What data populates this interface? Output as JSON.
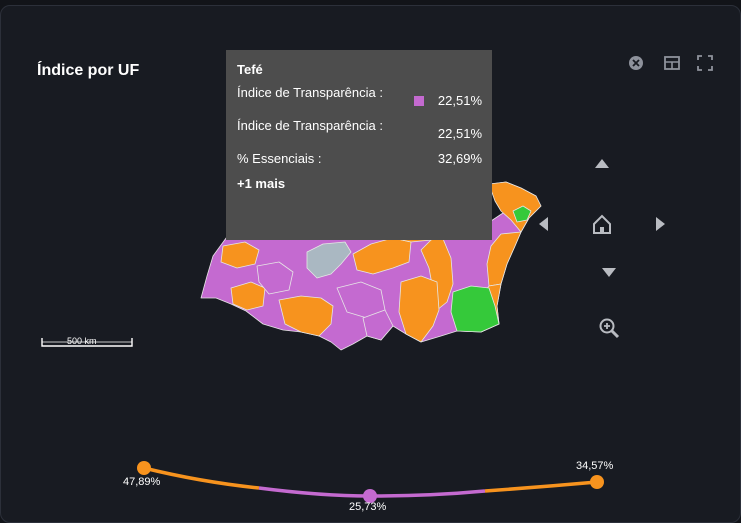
{
  "title": "Índice por UF",
  "toolbar": {
    "icons": [
      "close-circle-icon",
      "table-icon",
      "fullscreen-icon"
    ]
  },
  "map": {
    "scale_label": "500 km",
    "colors": {
      "purple": "#c46ad0",
      "orange": "#f7931e",
      "green": "#35c93a",
      "gray": "#aab8c2",
      "border": "#e6e6e6"
    }
  },
  "tooltip": {
    "title": "Tefé",
    "rows": [
      {
        "label": "Índice de Transparência :",
        "value": "22,51%",
        "swatch_color": "#c46ad0"
      },
      {
        "label": "Índice de Transparência :",
        "value": "22,51%"
      },
      {
        "label": "% Essenciais :",
        "value": "32,69%"
      }
    ],
    "more": "+1 mais"
  },
  "navigation": {
    "buttons": [
      "pan-up-icon",
      "pan-left-icon",
      "home-icon",
      "pan-right-icon",
      "pan-down-icon",
      "zoom-icon"
    ]
  },
  "slider": {
    "points": [
      {
        "label": "47,89%",
        "color": "#f7931e"
      },
      {
        "label": "25,73%",
        "color": "#c46ad0"
      },
      {
        "label": "34,57%",
        "color": "#f7931e"
      }
    ]
  }
}
